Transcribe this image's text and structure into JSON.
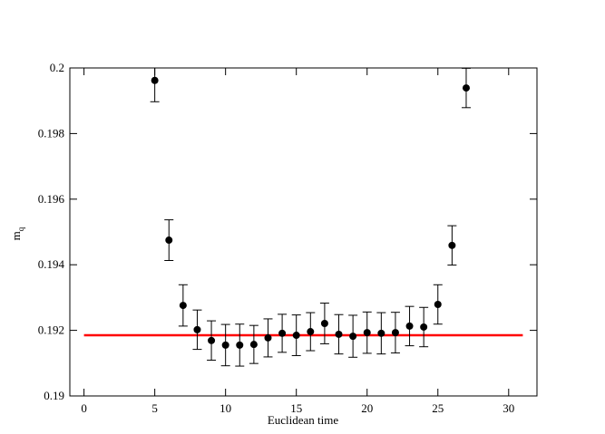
{
  "chart_data": {
    "type": "scatter",
    "x_label": "Euclidean time",
    "y_label": "m",
    "y_label_subscript": "q",
    "xlim": [
      -1,
      32
    ],
    "xticks": [
      0,
      5,
      10,
      15,
      20,
      25,
      30
    ],
    "ylim": [
      0.19,
      0.2
    ],
    "yticks": [
      0.19,
      0.192,
      0.194,
      0.196,
      0.198,
      0.2
    ],
    "series": [
      {
        "color": "#000000",
        "x": [
          5,
          6,
          7,
          8,
          9,
          10,
          11,
          12,
          13,
          14,
          15,
          16,
          17,
          18,
          19,
          20,
          21,
          22,
          23,
          24,
          25,
          26,
          27
        ],
        "values": [
          0.19962,
          0.19475,
          0.19276,
          0.19202,
          0.19169,
          0.19155,
          0.19155,
          0.19157,
          0.19177,
          0.19191,
          0.19185,
          0.19196,
          0.19221,
          0.19188,
          0.19182,
          0.19193,
          0.19191,
          0.19193,
          0.19213,
          0.1921,
          0.19279,
          0.19459,
          0.19939
        ],
        "errors": [
          0.00065,
          0.00062,
          0.00063,
          0.0006,
          0.0006,
          0.00063,
          0.00064,
          0.00058,
          0.00058,
          0.00058,
          0.00062,
          0.00058,
          0.00062,
          0.0006,
          0.00064,
          0.00063,
          0.00063,
          0.00062,
          0.0006,
          0.0006,
          0.0006,
          0.0006,
          0.0006
        ]
      }
    ],
    "hline": {
      "value": 0.19185,
      "xrange": [
        0,
        31
      ],
      "color": "#ff0000"
    }
  }
}
